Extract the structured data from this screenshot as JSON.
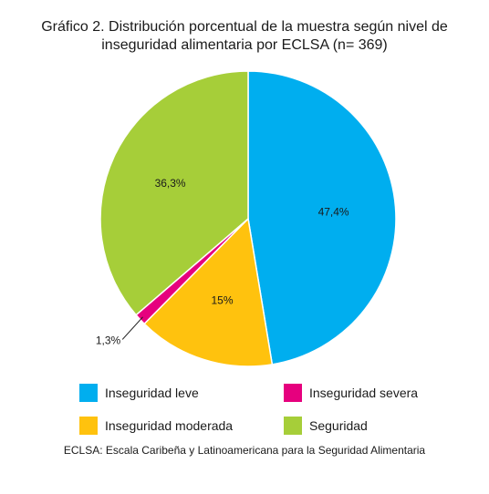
{
  "chart_data": {
    "type": "pie",
    "title": "Gráfico 2. Distribución porcentual de la muestra según nivel de",
    "subtitle": "inseguridad alimentaria por ECLSA (n= 369)",
    "slices": [
      {
        "name": "Inseguridad leve",
        "value": 47.4,
        "label": "47,4%",
        "color": "#00aeef"
      },
      {
        "name": "Inseguridad moderada",
        "value": 15.0,
        "label": "15%",
        "color": "#ffc20e"
      },
      {
        "name": "Inseguridad severa",
        "value": 1.3,
        "label": "1,3%",
        "color": "#e6007e"
      },
      {
        "name": "Seguridad",
        "value": 36.3,
        "label": "36,3%",
        "color": "#a6ce39"
      }
    ],
    "start_angle_deg": 0,
    "direction": "clockwise",
    "legend_placement": "bottom",
    "legend": [
      {
        "name": "Inseguridad leve",
        "color": "#00aeef"
      },
      {
        "name": "Inseguridad severa",
        "color": "#e6007e"
      },
      {
        "name": "Inseguridad moderada",
        "color": "#ffc20e"
      },
      {
        "name": "Seguridad",
        "color": "#a6ce39"
      }
    ]
  },
  "footnote": "ECLSA: Escala Caribeña y Latinoamericana para la Seguridad Alimentaria"
}
